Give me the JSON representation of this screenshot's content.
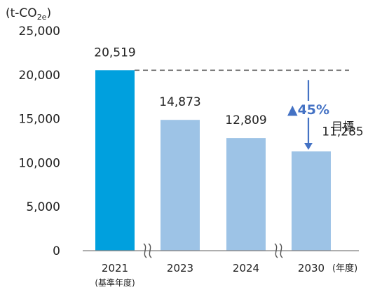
{
  "chart_data": {
    "type": "bar",
    "unit_label": {
      "prefix": "(t-CO",
      "sub": "2e",
      "suffix": ")"
    },
    "categories": [
      "2021",
      "2023",
      "2024",
      "2030"
    ],
    "category_notes": [
      "(基準年度)",
      "",
      "",
      ""
    ],
    "x_unit_label": "(年度)",
    "values": [
      20519,
      14873,
      12809,
      11285
    ],
    "value_labels": [
      "20,519",
      "14,873",
      "12,809",
      "11,285"
    ],
    "bar_colors": [
      "#00a0de",
      "#9dc3e6",
      "#9dc3e6",
      "#9dc3e6"
    ],
    "ylim": [
      0,
      25000
    ],
    "yticks": [
      0,
      5000,
      10000,
      15000,
      20000,
      25000
    ],
    "ytick_labels": [
      "0",
      "5,000",
      "10,000",
      "15,000",
      "20,000",
      "25,000"
    ],
    "axis_breaks_between": [
      [
        0,
        1
      ],
      [
        2,
        3
      ]
    ],
    "reference_line": {
      "value": 20519,
      "style": "dashed",
      "color": "#666666"
    },
    "reduction_label": "▲45%",
    "reduction_color": "#4472c4",
    "target_label": "目標",
    "grid": false
  }
}
